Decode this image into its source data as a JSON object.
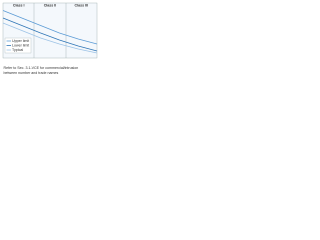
{
  "chart_data": {
    "type": "line",
    "columns": [
      "Class I",
      "Class II",
      "Class III"
    ],
    "x": [
      0,
      2,
      4,
      6,
      8,
      10
    ],
    "xlim": [
      0,
      10
    ],
    "ylim": [
      0,
      10
    ],
    "series": [
      {
        "name": "Upper limit",
        "color": "#5b9bd5",
        "values": [
          9.5,
          8,
          6.5,
          5,
          3.8,
          2.8
        ]
      },
      {
        "name": "Lower limit",
        "color": "#2e75b6",
        "values": [
          8,
          6.5,
          5,
          3.6,
          2.4,
          1.4
        ]
      },
      {
        "name": "Typical",
        "color": "#9dc3e6",
        "values": [
          7,
          5.5,
          4,
          2.8,
          1.8,
          1
        ]
      }
    ],
    "note": [
      "Refer to Sec. 3.1-VCE for commercial/intrusion",
      "between number and trade names"
    ]
  }
}
